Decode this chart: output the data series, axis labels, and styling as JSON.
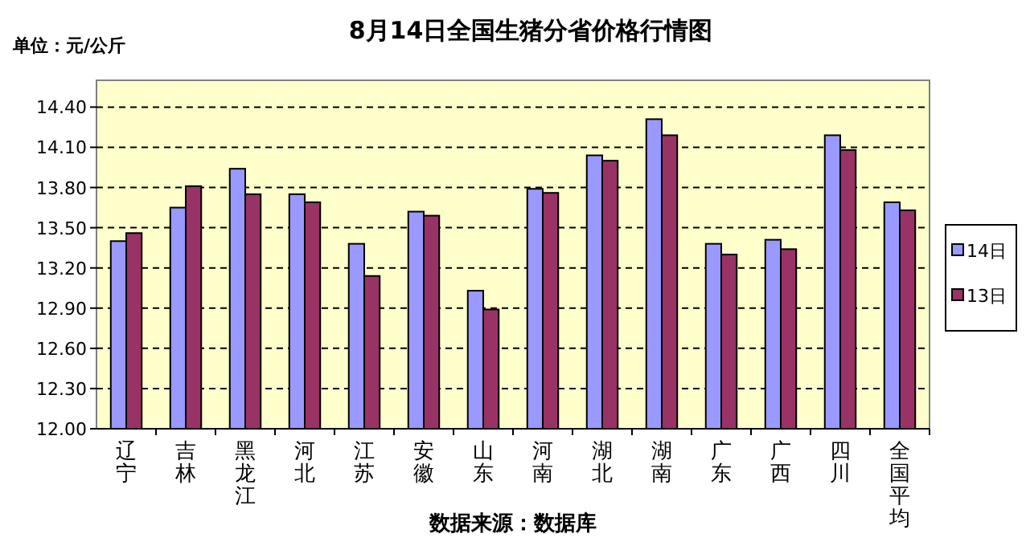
{
  "chart_data": {
    "type": "bar",
    "title": "8月14日全国生猪分省价格行情图",
    "ylabel": "单位：元/公斤",
    "annotations": [
      "数据来源：数据库"
    ],
    "categories": [
      "辽宁",
      "吉林",
      "黑龙江",
      "河北",
      "江苏",
      "安徽",
      "山东",
      "河南",
      "湖北",
      "湖南",
      "广东",
      "广西",
      "四川",
      "全国平均"
    ],
    "series": [
      {
        "name": "14日",
        "color": "#9999ff",
        "values": [
          13.4,
          13.65,
          13.94,
          13.75,
          13.38,
          13.62,
          13.03,
          13.79,
          14.04,
          14.31,
          13.38,
          13.41,
          14.19,
          13.69
        ]
      },
      {
        "name": "13日",
        "color": "#993366",
        "values": [
          13.46,
          13.81,
          13.75,
          13.69,
          13.14,
          13.59,
          12.89,
          13.76,
          14.0,
          14.19,
          13.3,
          13.34,
          14.08,
          13.63
        ]
      }
    ],
    "ylim": [
      12,
      14.6
    ],
    "yticks": [
      {
        "value": 12,
        "label": "12.00"
      },
      {
        "value": 12.3,
        "label": "12.30"
      },
      {
        "value": 12.6,
        "label": "12.60"
      },
      {
        "value": 12.9,
        "label": "12.90"
      },
      {
        "value": 13.2,
        "label": "13.20"
      },
      {
        "value": 13.5,
        "label": "13.50"
      },
      {
        "value": 13.8,
        "label": "13.80"
      },
      {
        "value": 14.1,
        "label": "14.10"
      },
      {
        "value": 14.4,
        "label": "14.40"
      }
    ],
    "grid": "y",
    "legend": "right"
  }
}
